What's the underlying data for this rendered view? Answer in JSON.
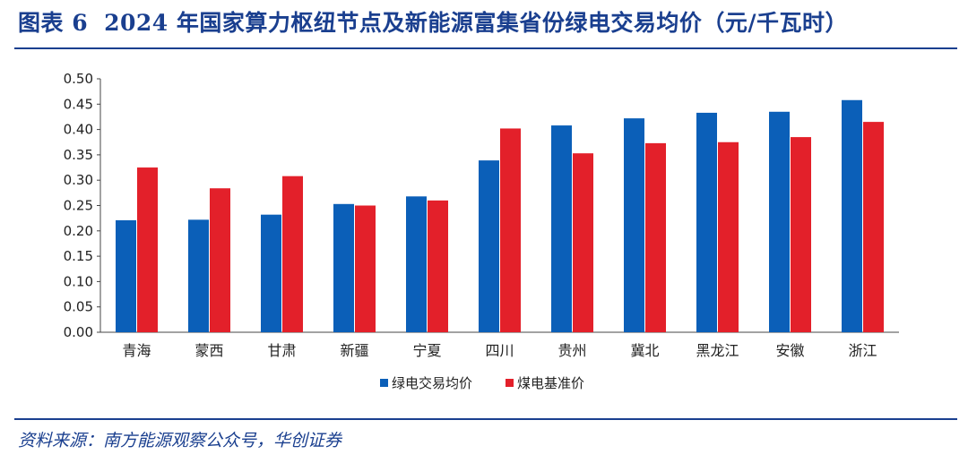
{
  "header": {
    "figure_label": "图表 6",
    "title": "2024 年国家算力枢纽节点及新能源富集省份绿电交易均价（元/千瓦时）"
  },
  "footer": {
    "source": "资料来源：南方能源观察公众号，华创证券"
  },
  "colors": {
    "series_green": "#0b5fb8",
    "series_coal": "#e3202a",
    "accent": "#1a3f8f"
  },
  "chart_data": {
    "type": "bar",
    "categories": [
      "青海",
      "蒙西",
      "甘肃",
      "新疆",
      "宁夏",
      "四川",
      "贵州",
      "冀北",
      "黑龙江",
      "安徽",
      "浙江"
    ],
    "series": [
      {
        "name": "绿电交易均价",
        "values": [
          0.221,
          0.222,
          0.232,
          0.253,
          0.268,
          0.339,
          0.408,
          0.422,
          0.433,
          0.435,
          0.458
        ]
      },
      {
        "name": "煤电基准价",
        "values": [
          0.325,
          0.284,
          0.308,
          0.25,
          0.26,
          0.402,
          0.353,
          0.373,
          0.375,
          0.385,
          0.415
        ]
      }
    ],
    "y_ticks": [
      "0.00",
      "0.05",
      "0.10",
      "0.15",
      "0.20",
      "0.25",
      "0.30",
      "0.35",
      "0.40",
      "0.45",
      "0.50"
    ],
    "ylim": [
      0,
      0.5
    ],
    "grid": false,
    "legend_position": "bottom"
  }
}
